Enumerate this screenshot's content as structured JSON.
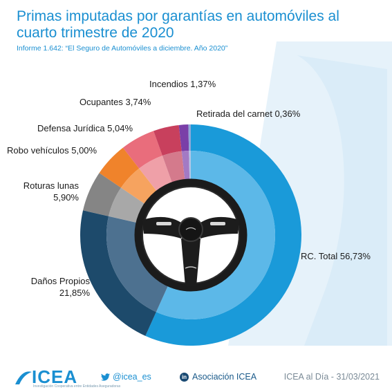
{
  "header": {
    "title": "Primas imputadas por garantías en automóviles al cuarto trimestre de 2020",
    "subtitle": "Informe 1.642: “El Seguro de Automóviles a diciembre. Año 2020”"
  },
  "chart_data": {
    "type": "pie",
    "style": "donut",
    "title": "Primas imputadas por garantías en automóviles al cuarto trimestre de 2020",
    "slices": [
      {
        "label": "RC. Total",
        "value_text": "56,73%",
        "value": 56.73,
        "color": "#1a9ad9",
        "inner_color": "#5cb8e8"
      },
      {
        "label": "Daños Propios",
        "value_text": "21,85%",
        "value": 21.85,
        "color": "#1d4a6b",
        "inner_color": "#4d7190"
      },
      {
        "label": "Roturas lunas",
        "value_text": "5,90%",
        "value": 5.9,
        "color": "#858585",
        "inner_color": "#a8a8a8"
      },
      {
        "label": "Robo vehículos",
        "value_text": "5,00%",
        "value": 5.0,
        "color": "#f0832b",
        "inner_color": "#f6a35f"
      },
      {
        "label": "Defensa Jurídica",
        "value_text": "5,04%",
        "value": 5.04,
        "color": "#e96d7c",
        "inner_color": "#efa0a8"
      },
      {
        "label": "Ocupantes",
        "value_text": "3,74%",
        "value": 3.74,
        "color": "#c8405d",
        "inner_color": "#d47a8c"
      },
      {
        "label": "Incendios",
        "value_text": "1,37%",
        "value": 1.37,
        "color": "#7a3fa8",
        "inner_color": "#a37ac4"
      },
      {
        "label": "Retirada del carnet",
        "value_text": "0,36%",
        "value": 0.36,
        "color": "#8fa8d8",
        "inner_color": "#b4c6e6"
      }
    ],
    "start": "top",
    "direction": "clockwise",
    "legend": "none"
  },
  "labels": {
    "rc": "RC. Total  56,73%",
    "danos_1": "Daños Propios",
    "danos_2": "21,85%",
    "roturas_1": "Roturas lunas",
    "roturas_2": "5,90%",
    "robo": "Robo vehículos  5,00%",
    "defensa": "Defensa Jurídica  5,04%",
    "ocupantes": "Ocupantes  3,74%",
    "incendios": "Incendios  1,37%",
    "retirada": "Retirada del carnet  0,36%"
  },
  "footer": {
    "logo_text": "ICEA",
    "logo_tagline": "Investigación Cooperativa entre Entidades Aseguradoras",
    "twitter": "@icea_es",
    "linkedin": "Asociación ICEA",
    "linkedin_badge": "in",
    "date": "ICEA al Día - 31/03/2021"
  },
  "icons": {
    "twitter": "twitter-bird-icon",
    "linkedin": "linkedin-icon",
    "logo": "icea-logo-icon",
    "center": "steering-wheel-icon"
  }
}
